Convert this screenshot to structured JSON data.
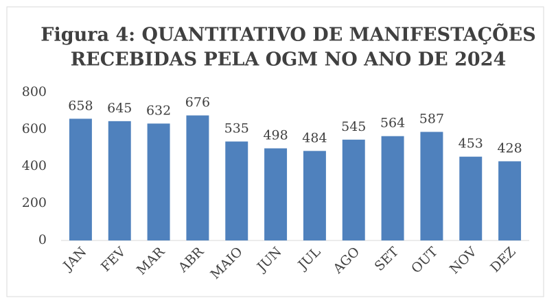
{
  "chart_data": {
    "type": "bar",
    "title": [
      "Figura 4: QUANTITATIVO DE MANIFESTAÇÕES",
      "RECEBIDAS PELA OGM NO ANO DE 2024"
    ],
    "categories": [
      "JAN",
      "FEV",
      "MAR",
      "ABR",
      "MAIO",
      "JUN",
      "JUL",
      "AGO",
      "SET",
      "OUT",
      "NOV",
      "DEZ"
    ],
    "values": [
      658,
      645,
      632,
      676,
      535,
      498,
      484,
      545,
      564,
      587,
      453,
      428
    ],
    "color": "#4f81bd",
    "ylim": [
      0,
      800
    ],
    "yticks": [
      0,
      200,
      400,
      600,
      800
    ],
    "grid": false
  }
}
